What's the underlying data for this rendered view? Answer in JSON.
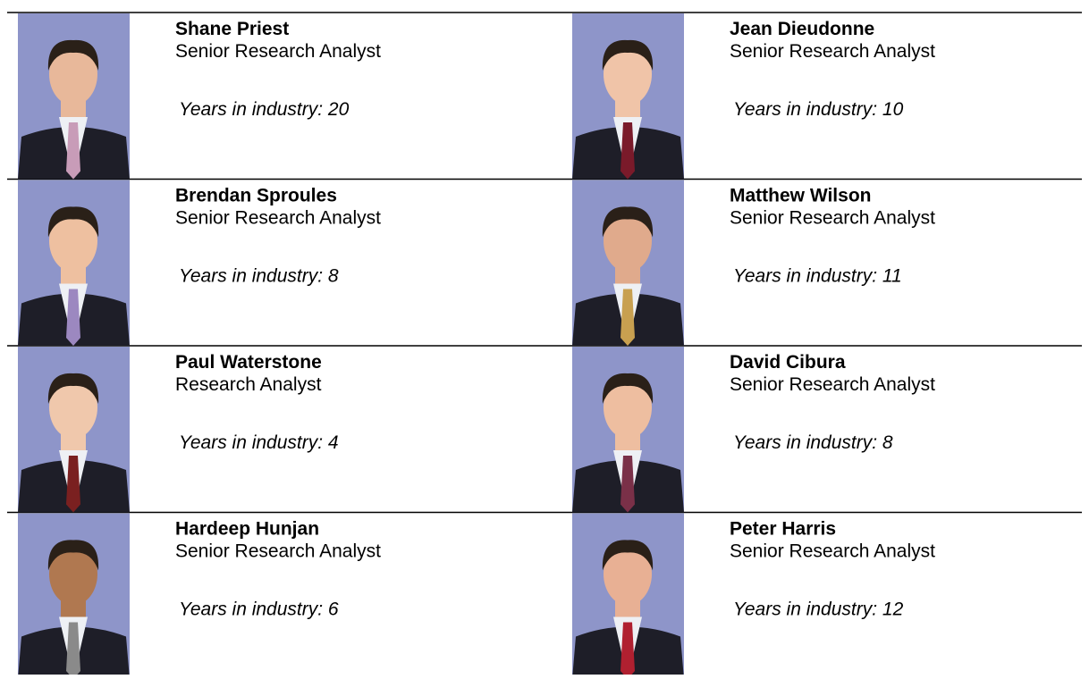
{
  "cards": [
    {
      "name": "Shane Priest",
      "role": "Senior Research Analyst",
      "years": "Years in industry: 20"
    },
    {
      "name": "Jean Dieudonne",
      "role": "Senior Research Analyst",
      "years": "Years in industry: 10"
    },
    {
      "name": "Brendan Sproules",
      "role": "Senior Research Analyst",
      "years": "Years in industry: 8"
    },
    {
      "name": "Matthew Wilson",
      "role": "Senior Research Analyst",
      "years": "Years in industry: 11"
    },
    {
      "name": "Paul Waterstone",
      "role": "Research Analyst",
      "years": "Years in industry: 4"
    },
    {
      "name": "David Cibura",
      "role": "Senior Research Analyst",
      "years": "Years in industry: 8"
    },
    {
      "name": "Hardeep Hunjan",
      "role": "Senior Research Analyst",
      "years": "Years in industry: 6"
    },
    {
      "name": "Peter Harris",
      "role": "Senior Research Analyst",
      "years": "Years in industry: 12"
    }
  ]
}
